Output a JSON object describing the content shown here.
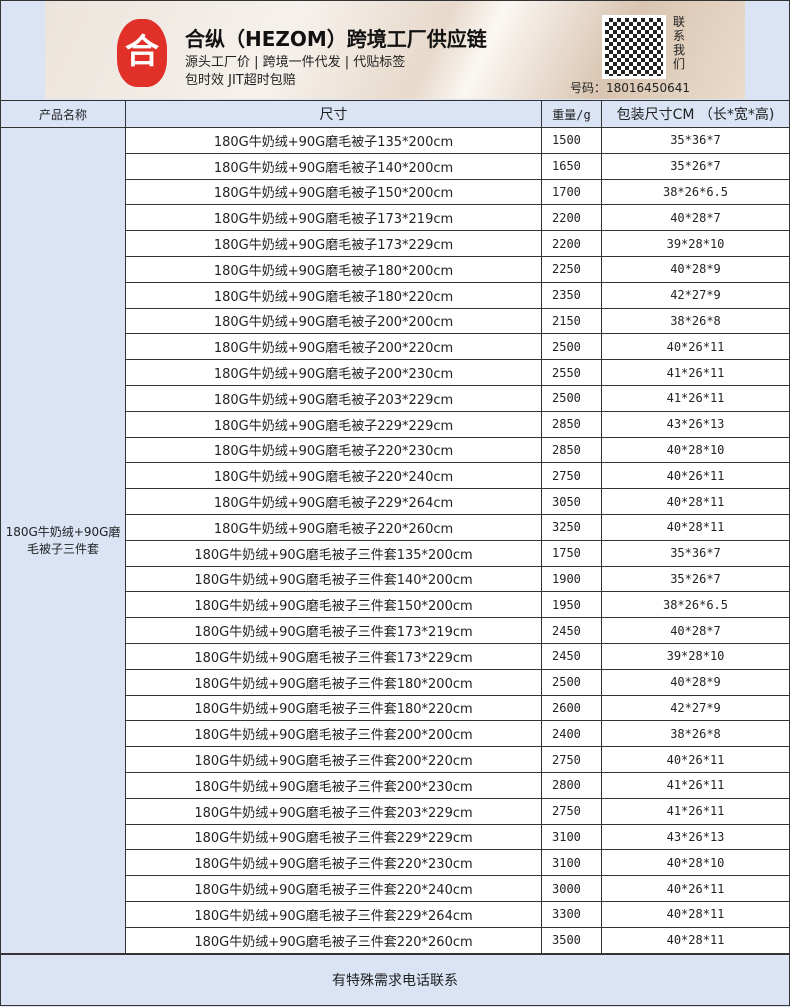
{
  "banner": {
    "logo_char": "合",
    "title": "合纵（HEZOM）跨境工厂供应链",
    "line1": "源头工厂价 | 跨境一件代发 | 代贴标签",
    "line2": "包时效 JIT超时包赔",
    "contact": "联系我们",
    "phone": "号码：18016450641"
  },
  "table": {
    "headers": [
      "产品名称",
      "尺寸",
      "重量/g",
      "包装尺寸CM （长*宽*高)"
    ],
    "product_name": "180G牛奶绒+90G磨毛被子三件套",
    "rows": [
      [
        "180G牛奶绒+90G磨毛被子135*200cm",
        "1500",
        "35*36*7"
      ],
      [
        "180G牛奶绒+90G磨毛被子140*200cm",
        "1650",
        "35*26*7"
      ],
      [
        "180G牛奶绒+90G磨毛被子150*200cm",
        "1700",
        "38*26*6.5"
      ],
      [
        "180G牛奶绒+90G磨毛被子173*219cm",
        "2200",
        "40*28*7"
      ],
      [
        "180G牛奶绒+90G磨毛被子173*229cm",
        "2200",
        "39*28*10"
      ],
      [
        "180G牛奶绒+90G磨毛被子180*200cm",
        "2250",
        "40*28*9"
      ],
      [
        "180G牛奶绒+90G磨毛被子180*220cm",
        "2350",
        "42*27*9"
      ],
      [
        "180G牛奶绒+90G磨毛被子200*200cm",
        "2150",
        "38*26*8"
      ],
      [
        "180G牛奶绒+90G磨毛被子200*220cm",
        "2500",
        "40*26*11"
      ],
      [
        "180G牛奶绒+90G磨毛被子200*230cm",
        "2550",
        "41*26*11"
      ],
      [
        "180G牛奶绒+90G磨毛被子203*229cm",
        "2500",
        "41*26*11"
      ],
      [
        "180G牛奶绒+90G磨毛被子229*229cm",
        "2850",
        "43*26*13"
      ],
      [
        "180G牛奶绒+90G磨毛被子220*230cm",
        "2850",
        "40*28*10"
      ],
      [
        "180G牛奶绒+90G磨毛被子220*240cm",
        "2750",
        "40*26*11"
      ],
      [
        "180G牛奶绒+90G磨毛被子229*264cm",
        "3050",
        "40*28*11"
      ],
      [
        "180G牛奶绒+90G磨毛被子220*260cm",
        "3250",
        "40*28*11"
      ],
      [
        "180G牛奶绒+90G磨毛被子三件套135*200cm",
        "1750",
        "35*36*7"
      ],
      [
        "180G牛奶绒+90G磨毛被子三件套140*200cm",
        "1900",
        "35*26*7"
      ],
      [
        "180G牛奶绒+90G磨毛被子三件套150*200cm",
        "1950",
        "38*26*6.5"
      ],
      [
        "180G牛奶绒+90G磨毛被子三件套173*219cm",
        "2450",
        "40*28*7"
      ],
      [
        "180G牛奶绒+90G磨毛被子三件套173*229cm",
        "2450",
        "39*28*10"
      ],
      [
        "180G牛奶绒+90G磨毛被子三件套180*200cm",
        "2500",
        "40*28*9"
      ],
      [
        "180G牛奶绒+90G磨毛被子三件套180*220cm",
        "2600",
        "42*27*9"
      ],
      [
        "180G牛奶绒+90G磨毛被子三件套200*200cm",
        "2400",
        "38*26*8"
      ],
      [
        "180G牛奶绒+90G磨毛被子三件套200*220cm",
        "2750",
        "40*26*11"
      ],
      [
        "180G牛奶绒+90G磨毛被子三件套200*230cm",
        "2800",
        "41*26*11"
      ],
      [
        "180G牛奶绒+90G磨毛被子三件套203*229cm",
        "2750",
        "41*26*11"
      ],
      [
        "180G牛奶绒+90G磨毛被子三件套229*229cm",
        "3100",
        "43*26*13"
      ],
      [
        "180G牛奶绒+90G磨毛被子三件套220*230cm",
        "3100",
        "40*28*10"
      ],
      [
        "180G牛奶绒+90G磨毛被子三件套220*240cm",
        "3000",
        "40*26*11"
      ],
      [
        "180G牛奶绒+90G磨毛被子三件套229*264cm",
        "3300",
        "40*28*11"
      ],
      [
        "180G牛奶绒+90G磨毛被子三件套220*260cm",
        "3500",
        "40*28*11"
      ]
    ]
  },
  "footer": "有特殊需求电话联系"
}
